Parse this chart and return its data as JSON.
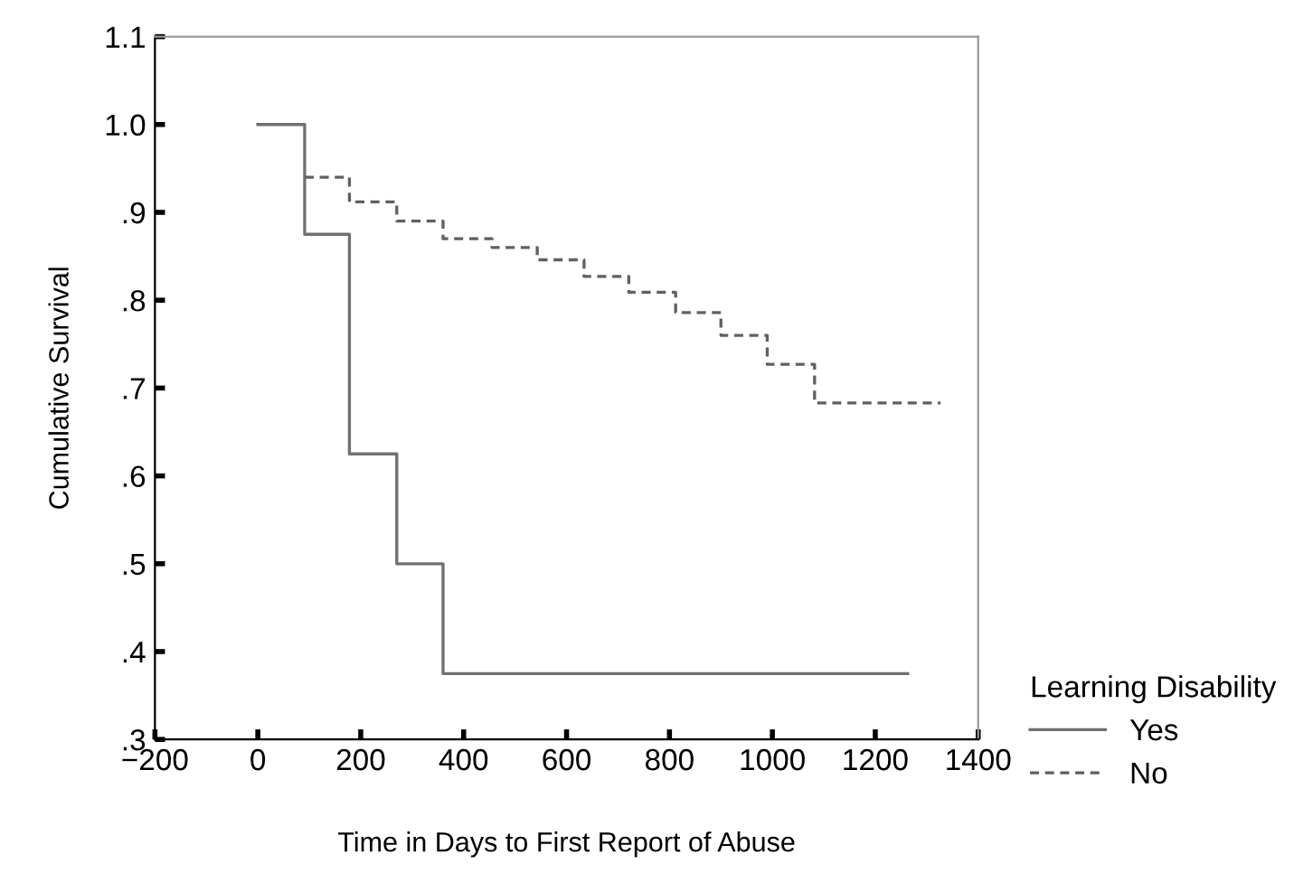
{
  "chart_data": {
    "type": "step",
    "xlabel": "Time in Days to First Report of Abuse",
    "ylabel": "Cumulative Survival",
    "legend_title": "Learning Disability",
    "legend": "bottom right",
    "xlim": [
      -200,
      1400
    ],
    "xticks": [
      {
        "value": -200,
        "label": "−200"
      },
      0,
      200,
      400,
      600,
      800,
      1000,
      1200,
      1400
    ],
    "ylim": [
      0.3,
      1.1
    ],
    "yticks": [
      {
        "value": 0.3,
        "label": ".3"
      },
      {
        "value": 0.4,
        "label": ".4"
      },
      {
        "value": 0.5,
        "label": ".5"
      },
      {
        "value": 0.6,
        "label": ".6"
      },
      {
        "value": 0.7,
        "label": ".7"
      },
      {
        "value": 0.8,
        "label": ".8"
      },
      {
        "value": 0.9,
        "label": ".9"
      },
      {
        "value": 1.0,
        "label": "1.0"
      },
      {
        "value": 1.1,
        "label": "1.1"
      }
    ],
    "grid": false,
    "series": [
      {
        "name": "Yes",
        "color": "#707070",
        "line_style": "solid",
        "x": [
          0,
          91,
          178,
          270,
          360,
          1263
        ],
        "values": [
          1.0,
          0.875,
          0.625,
          0.5,
          0.375,
          0.375
        ]
      },
      {
        "name": "No",
        "color": "#606060",
        "line_style": "dashed",
        "x": [
          91,
          178,
          270,
          360,
          455,
          543,
          634,
          721,
          812,
          900,
          990,
          1082,
          1327
        ],
        "values": [
          0.94,
          0.912,
          0.89,
          0.87,
          0.86,
          0.846,
          0.827,
          0.809,
          0.786,
          0.76,
          0.727,
          0.683,
          0.683
        ]
      }
    ]
  }
}
